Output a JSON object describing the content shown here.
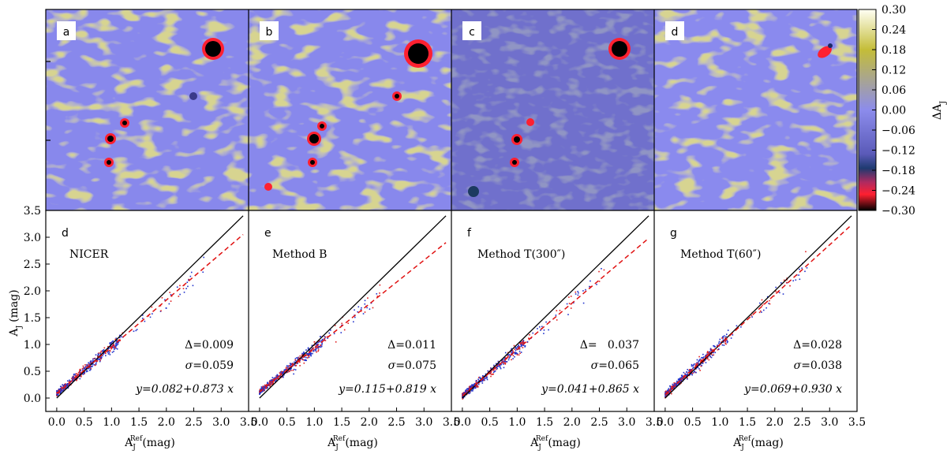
{
  "colorbar": {
    "label": "ΔA",
    "label_sub": "J",
    "range": [
      -0.3,
      0.3
    ],
    "ticks": [
      "0.30",
      "0.24",
      "0.18",
      "0.12",
      "0.06",
      "0.00",
      "−0.06",
      "−0.12",
      "−0.18",
      "−0.24",
      "−0.30"
    ],
    "colors": {
      "top": "#fffff0",
      "yellow": "#c8c23c",
      "mid": "#8080e8",
      "dark": "#1c2a66",
      "red": "#ff2030",
      "black": "#000000"
    }
  },
  "maps": [
    {
      "tag": "a"
    },
    {
      "tag": "b"
    },
    {
      "tag": "c"
    },
    {
      "tag": "d"
    }
  ],
  "chart_data": [
    {
      "type": "scatter",
      "panel": "d",
      "method": "NICER",
      "delta_label": "Δ",
      "delta": "=0.009",
      "sigma_label": "σ",
      "sigma": "=0.059",
      "fit_label": "y=0.082+0.873 x",
      "fit": {
        "intercept": 0.082,
        "slope": 0.873
      },
      "xlim": [
        -0.2,
        3.5
      ],
      "ylim": [
        -0.25,
        3.5
      ],
      "xlabel": "A",
      "xlabel_sub": "J",
      "xlabel_sup": "Ref",
      "xlabel_unit": "(mag)",
      "ylabel": "A",
      "ylabel_sub": "J",
      "ylabel_unit": "(mag)",
      "max_x": 2.7,
      "xticks": [
        "0.0",
        "0.5",
        "1.0",
        "1.5",
        "2.0",
        "2.5",
        "3.0",
        "3.5"
      ],
      "yticks": [
        "0.0",
        "0.5",
        "1.0",
        "1.5",
        "2.0",
        "2.5",
        "3.0",
        "3.5"
      ]
    },
    {
      "type": "scatter",
      "panel": "e",
      "method": "Method B",
      "delta_label": "Δ",
      "delta": "=0.011",
      "sigma_label": "σ",
      "sigma": "=0.075",
      "fit_label": "y=0.115+0.819 x",
      "fit": {
        "intercept": 0.115,
        "slope": 0.819
      },
      "xlim": [
        -0.2,
        3.5
      ],
      "ylim": [
        -0.25,
        3.5
      ],
      "xlabel": "A",
      "xlabel_sub": "J",
      "xlabel_sup": "Ref",
      "xlabel_unit": "(mag)",
      "max_x": 2.2,
      "xticks": [
        "0.0",
        "0.5",
        "1.0",
        "1.5",
        "2.0",
        "2.5",
        "3.0",
        "3.5"
      ]
    },
    {
      "type": "scatter",
      "panel": "f",
      "method": "Method T(300″)",
      "delta_label": "Δ",
      "delta": "=   0.037",
      "sigma_label": "σ",
      "sigma": "=0.065",
      "fit_label": "y=0.041+0.865 x",
      "fit": {
        "intercept": 0.041,
        "slope": 0.865
      },
      "xlim": [
        -0.2,
        3.5
      ],
      "ylim": [
        -0.25,
        3.5
      ],
      "xlabel": "A",
      "xlabel_sub": "J",
      "xlabel_sup": "Ref",
      "xlabel_unit": "(mag)",
      "max_x": 2.6,
      "xticks": [
        "0.0",
        "0.5",
        "1.0",
        "1.5",
        "2.0",
        "2.5",
        "3.0",
        "3.5"
      ]
    },
    {
      "type": "scatter",
      "panel": "g",
      "method": "Method T(60″)",
      "delta_label": "Δ",
      "delta": "=0.028",
      "sigma_label": "σ",
      "sigma": "=0.038",
      "fit_label": "y=0.069+0.930 x",
      "fit": {
        "intercept": 0.069,
        "slope": 0.93
      },
      "xlim": [
        -0.2,
        3.5
      ],
      "ylim": [
        -0.25,
        3.5
      ],
      "xlabel": "A",
      "xlabel_sub": "J",
      "xlabel_sup": "Ref",
      "xlabel_unit": "(mag)",
      "max_x": 2.6,
      "xticks": [
        "0.0",
        "0.5",
        "1.0",
        "1.5",
        "2.0",
        "2.5",
        "3.0",
        "3.5"
      ]
    }
  ]
}
